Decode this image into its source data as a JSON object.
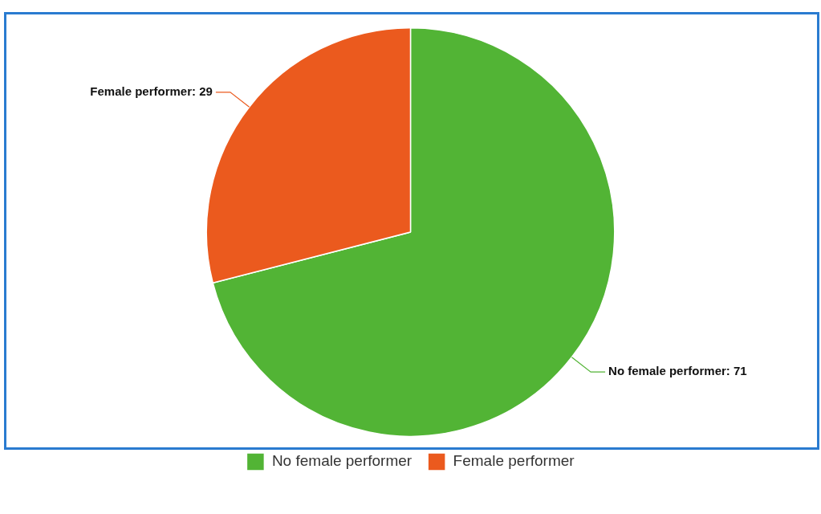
{
  "chart_data": {
    "type": "pie",
    "categories": [
      "No female performer",
      "Female performer"
    ],
    "values": [
      71,
      29
    ],
    "colors": [
      "#52b435",
      "#eb5a1e"
    ],
    "value_labels": [
      "No female performer: 71",
      "Female performer: 29"
    ],
    "legend": "bottom"
  }
}
